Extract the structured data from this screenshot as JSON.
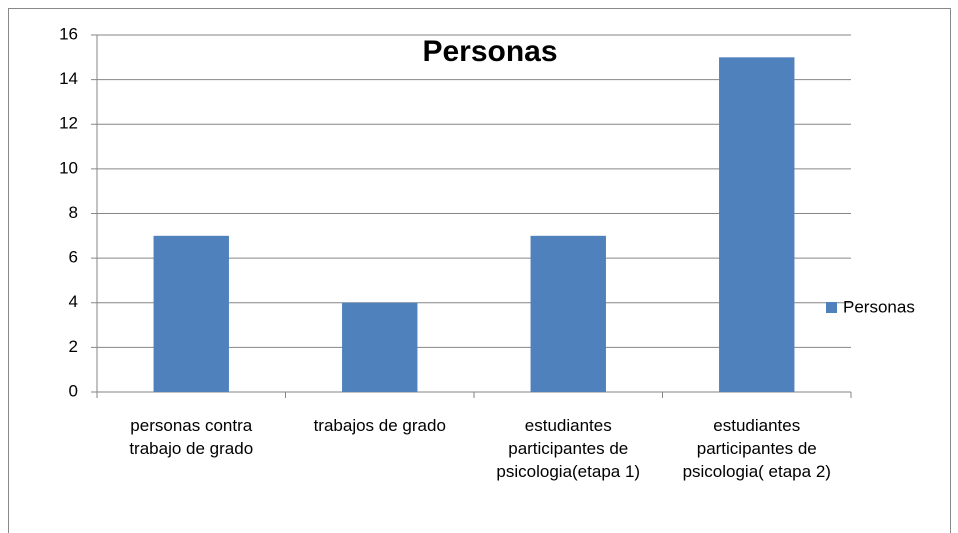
{
  "chart_data": {
    "type": "bar",
    "title": "Personas",
    "categories": [
      "personas contra trabajo de grado",
      "trabajos de grado",
      "estudiantes participantes de psicologia(etapa 1)",
      "estudiantes participantes de psicologia( etapa 2)"
    ],
    "series": [
      {
        "name": "Personas",
        "color": "#4f81bd",
        "values": [
          7,
          4,
          7,
          15
        ]
      }
    ],
    "ylim": [
      0,
      16
    ],
    "yticks": [
      0,
      2,
      4,
      6,
      8,
      10,
      12,
      14,
      16
    ],
    "grid": true,
    "legend": "right"
  }
}
